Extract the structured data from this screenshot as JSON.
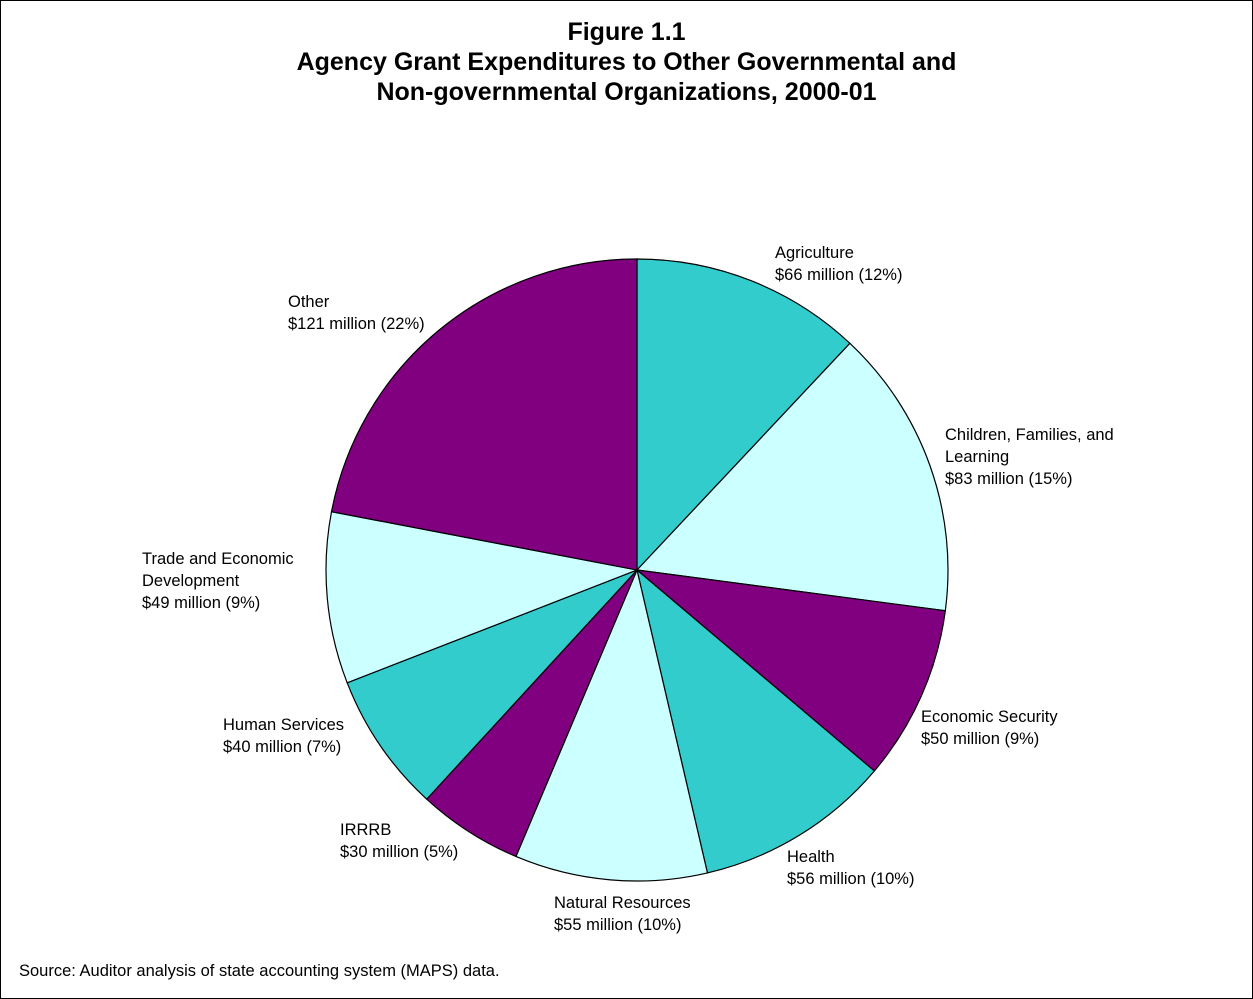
{
  "figure": {
    "label": "Figure 1.1",
    "title_line1": "Agency Grant Expenditures to Other Governmental and",
    "title_line2": "Non-governmental Organizations, 2000-01"
  },
  "source": "Source:  Auditor analysis of state accounting system (MAPS) data.",
  "colors": {
    "teal": "#33CCCC",
    "light_cyan": "#CCFFFF",
    "purple": "#800080"
  },
  "chart_data": {
    "type": "pie",
    "title": "Agency Grant Expenditures to Other Governmental and Non-governmental Organizations, 2000-01",
    "units": "million",
    "start": "12 o'clock, clockwise",
    "slices": [
      {
        "label": [
          "Agriculture"
        ],
        "amount": "$66 million (12%)",
        "value": 66,
        "percent": 12,
        "color": "#33CCCC"
      },
      {
        "label": [
          "Children, Families, and",
          "Learning"
        ],
        "amount": "$83 million (15%)",
        "value": 83,
        "percent": 15,
        "color": "#CCFFFF"
      },
      {
        "label": [
          "Economic Security"
        ],
        "amount": "$50 million (9%)",
        "value": 50,
        "percent": 9,
        "color": "#800080"
      },
      {
        "label": [
          "Health"
        ],
        "amount": "$56 million (10%)",
        "value": 56,
        "percent": 10,
        "color": "#33CCCC"
      },
      {
        "label": [
          "Natural Resources"
        ],
        "amount": "$55 million (10%)",
        "value": 55,
        "percent": 10,
        "color": "#CCFFFF"
      },
      {
        "label": [
          "IRRRB"
        ],
        "amount": "$30 million (5%)",
        "value": 30,
        "percent": 5,
        "color": "#800080"
      },
      {
        "label": [
          "Human Services"
        ],
        "amount": "$40 million (7%)",
        "value": 40,
        "percent": 7,
        "color": "#33CCCC"
      },
      {
        "label": [
          "Trade and Economic",
          "Development"
        ],
        "amount": "$49 million (9%)",
        "value": 49,
        "percent": 9,
        "color": "#CCFFFF"
      },
      {
        "label": [
          "Other"
        ],
        "amount": "$121 million (22%)",
        "value": 121,
        "percent": 22,
        "color": "#800080"
      }
    ]
  }
}
